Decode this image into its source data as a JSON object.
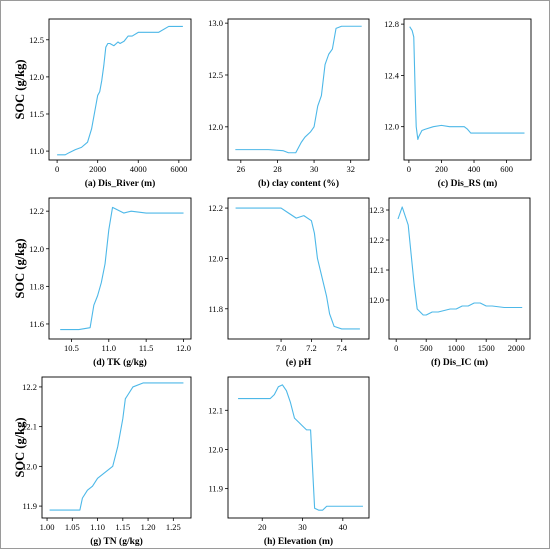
{
  "colors": {
    "line": "#4db8e8",
    "axis": "#000000",
    "frame": "#9a9a9a"
  },
  "chart_data": [
    {
      "type": "line",
      "caption": "(a) Dis_River (m)",
      "ylabel": "SOC (g/kg)",
      "xlim": [
        -400,
        6600
      ],
      "ylim": [
        10.88,
        12.78
      ],
      "xticks": [
        0,
        2000,
        4000,
        6000
      ],
      "xtick_labels": [
        "0",
        "2000",
        "4000",
        "6000"
      ],
      "yticks": [
        11.0,
        11.5,
        12.0,
        12.5
      ],
      "ytick_labels": [
        "11.0",
        "11.5",
        "12.0",
        "12.5"
      ],
      "x": [
        0,
        400,
        600,
        900,
        1200,
        1500,
        1700,
        1900,
        2000,
        2100,
        2200,
        2300,
        2400,
        2500,
        2600,
        2800,
        3000,
        3100,
        3300,
        3500,
        3700,
        4000,
        4500,
        5000,
        5500,
        6000,
        6200
      ],
      "y": [
        10.95,
        10.95,
        10.98,
        11.02,
        11.05,
        11.12,
        11.3,
        11.6,
        11.75,
        11.8,
        11.95,
        12.15,
        12.4,
        12.45,
        12.45,
        12.42,
        12.47,
        12.45,
        12.48,
        12.55,
        12.55,
        12.6,
        12.6,
        12.6,
        12.68,
        12.68,
        12.68
      ]
    },
    {
      "type": "line",
      "caption": "(b) clay content (%)",
      "ylabel": "",
      "xlim": [
        25.3,
        33.0
      ],
      "ylim": [
        11.68,
        13.04
      ],
      "xticks": [
        26,
        28,
        30,
        32
      ],
      "xtick_labels": [
        "26",
        "28",
        "30",
        "32"
      ],
      "yticks": [
        12.0,
        12.5,
        13.0
      ],
      "ytick_labels": [
        "12.0",
        "12.5",
        "13.0"
      ],
      "x": [
        25.7,
        26.5,
        27.5,
        28.3,
        28.6,
        29.0,
        29.3,
        29.5,
        29.8,
        30.0,
        30.2,
        30.4,
        30.6,
        30.8,
        31.0,
        31.2,
        31.5,
        32.0,
        32.6
      ],
      "y": [
        11.78,
        11.78,
        11.78,
        11.77,
        11.75,
        11.75,
        11.85,
        11.9,
        11.95,
        12.0,
        12.2,
        12.3,
        12.6,
        12.7,
        12.75,
        12.95,
        12.97,
        12.97,
        12.97
      ]
    },
    {
      "type": "line",
      "caption": "(c) Dis_RS (m)",
      "ylabel": "",
      "xlim": [
        -30,
        750
      ],
      "ylim": [
        11.74,
        12.84
      ],
      "xticks": [
        0,
        200,
        400,
        600
      ],
      "xtick_labels": [
        "0",
        "200",
        "400",
        "600"
      ],
      "yticks": [
        12.0,
        12.4,
        12.8
      ],
      "ytick_labels": [
        "12.0",
        "12.4",
        "12.8"
      ],
      "x": [
        5,
        20,
        30,
        40,
        45,
        55,
        60,
        80,
        100,
        150,
        200,
        250,
        300,
        340,
        360,
        380,
        400,
        500,
        600,
        710
      ],
      "y": [
        12.78,
        12.75,
        12.7,
        12.2,
        12.0,
        11.9,
        11.92,
        11.97,
        11.98,
        12.0,
        12.01,
        12.0,
        12.0,
        12.0,
        11.98,
        11.95,
        11.95,
        11.95,
        11.95,
        11.95
      ]
    },
    {
      "type": "line",
      "caption": "(d) TK (g/kg)",
      "ylabel": "SOC (g/kg)",
      "xlim": [
        10.2,
        12.1
      ],
      "ylim": [
        11.52,
        12.27
      ],
      "xticks": [
        10.5,
        11.0,
        11.5,
        12.0
      ],
      "xtick_labels": [
        "10.5",
        "11.0",
        "11.5",
        "12.0"
      ],
      "yticks": [
        11.6,
        11.8,
        12.0,
        12.2
      ],
      "ytick_labels": [
        "11.6",
        "11.8",
        "12.0",
        "12.2"
      ],
      "x": [
        10.35,
        10.6,
        10.75,
        10.8,
        10.85,
        10.9,
        10.95,
        11.0,
        11.05,
        11.1,
        11.15,
        11.2,
        11.3,
        11.5,
        11.8,
        12.0
      ],
      "y": [
        11.57,
        11.57,
        11.58,
        11.7,
        11.75,
        11.82,
        11.92,
        12.1,
        12.22,
        12.21,
        12.2,
        12.19,
        12.2,
        12.19,
        12.19,
        12.19
      ]
    },
    {
      "type": "line",
      "caption": "(e) pH",
      "ylabel": "",
      "xlim": [
        6.65,
        7.58
      ],
      "ylim": [
        11.68,
        12.24
      ],
      "xticks": [
        7.0,
        7.2,
        7.4
      ],
      "xtick_labels": [
        "7.0",
        "7.2",
        "7.4"
      ],
      "yticks": [
        11.8,
        12.0,
        12.2
      ],
      "ytick_labels": [
        "11.8",
        "12.0",
        "12.2"
      ],
      "x": [
        6.7,
        6.85,
        7.0,
        7.05,
        7.1,
        7.15,
        7.2,
        7.22,
        7.24,
        7.26,
        7.28,
        7.3,
        7.32,
        7.35,
        7.4,
        7.52
      ],
      "y": [
        12.2,
        12.2,
        12.2,
        12.18,
        12.16,
        12.17,
        12.15,
        12.1,
        12.0,
        11.95,
        11.9,
        11.85,
        11.78,
        11.73,
        11.72,
        11.72
      ]
    },
    {
      "type": "line",
      "caption": "(f) Dis_IC (m)",
      "ylabel": "",
      "xlim": [
        -120,
        2230
      ],
      "ylim": [
        11.87,
        12.34
      ],
      "xticks": [
        0,
        500,
        1000,
        1500,
        2000
      ],
      "xtick_labels": [
        "0",
        "500",
        "1000",
        "1500",
        "2000"
      ],
      "yticks": [
        12.0,
        12.1,
        12.2,
        12.3
      ],
      "ytick_labels": [
        "12.0",
        "12.1",
        "12.2",
        "12.3"
      ],
      "x": [
        30,
        100,
        150,
        200,
        250,
        300,
        350,
        400,
        450,
        500,
        600,
        700,
        900,
        1000,
        1100,
        1200,
        1300,
        1400,
        1500,
        1600,
        1800,
        2100
      ],
      "y": [
        12.27,
        12.31,
        12.28,
        12.25,
        12.15,
        12.05,
        11.97,
        11.96,
        11.95,
        11.95,
        11.96,
        11.96,
        11.97,
        11.97,
        11.98,
        11.98,
        11.99,
        11.99,
        11.98,
        11.98,
        11.975,
        11.975
      ]
    },
    {
      "type": "line",
      "caption": "(g) TN (g/kg)",
      "ylabel": "SOC (g/kg)",
      "xlim": [
        0.99,
        1.285
      ],
      "ylim": [
        11.87,
        12.225
      ],
      "xticks": [
        1.0,
        1.05,
        1.1,
        1.15,
        1.2,
        1.25
      ],
      "xtick_labels": [
        "1.00",
        "1.05",
        "1.10",
        "1.15",
        "1.20",
        "1.25"
      ],
      "yticks": [
        11.9,
        12.0,
        12.1,
        12.2
      ],
      "ytick_labels": [
        "11.9",
        "12.0",
        "12.1",
        "12.2"
      ],
      "x": [
        1.005,
        1.04,
        1.065,
        1.07,
        1.08,
        1.09,
        1.1,
        1.11,
        1.12,
        1.13,
        1.14,
        1.15,
        1.155,
        1.16,
        1.17,
        1.19,
        1.2,
        1.23,
        1.27
      ],
      "y": [
        11.89,
        11.89,
        11.89,
        11.92,
        11.94,
        11.95,
        11.97,
        11.98,
        11.99,
        12.0,
        12.05,
        12.12,
        12.17,
        12.18,
        12.2,
        12.21,
        12.21,
        12.21,
        12.21
      ]
    },
    {
      "type": "line",
      "caption": "(h) Elevation (m)",
      "ylabel": "",
      "xlim": [
        11.5,
        46.5
      ],
      "ylim": [
        11.825,
        12.185
      ],
      "xticks": [
        20,
        30,
        40
      ],
      "xtick_labels": [
        "20",
        "30",
        "40"
      ],
      "yticks": [
        11.9,
        12.0,
        12.1
      ],
      "ytick_labels": [
        "11.9",
        "12.0",
        "12.1"
      ],
      "x": [
        14,
        22,
        23,
        24,
        25,
        26,
        27,
        28,
        29,
        30,
        31,
        32,
        33,
        34,
        35,
        36,
        40,
        45
      ],
      "y": [
        12.13,
        12.13,
        12.14,
        12.16,
        12.165,
        12.15,
        12.12,
        12.08,
        12.07,
        12.06,
        12.05,
        12.05,
        11.85,
        11.845,
        11.845,
        11.855,
        11.855,
        11.855
      ]
    }
  ]
}
